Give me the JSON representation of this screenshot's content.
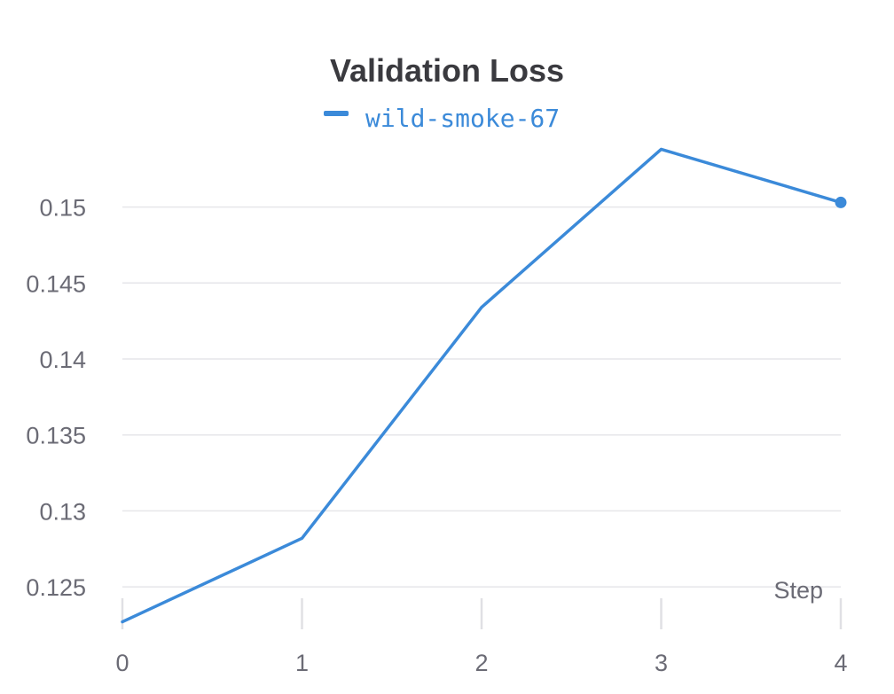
{
  "chart_data": {
    "type": "line",
    "title": "Validation Loss",
    "xlabel": "Step",
    "ylabel": "",
    "x": [
      0,
      1,
      2,
      3,
      4
    ],
    "series": [
      {
        "name": "wild-smoke-67",
        "values": [
          0.1227,
          0.1282,
          0.1434,
          0.1538,
          0.1503
        ]
      }
    ],
    "xticks": [
      "0",
      "1",
      "2",
      "3",
      "4"
    ],
    "yticks": [
      "0.125",
      "0.13",
      "0.135",
      "0.14",
      "0.145",
      "0.15"
    ],
    "ylim": [
      0.1225,
      0.154
    ],
    "xlim": [
      0,
      4
    ],
    "grid": true,
    "legend": "top-center",
    "colors": {
      "series": "#3b8ad9"
    }
  }
}
